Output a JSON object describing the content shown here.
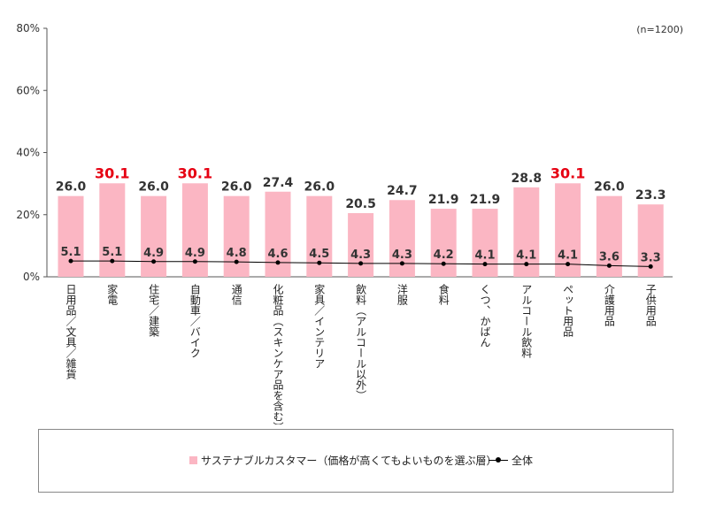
{
  "sample_note": "(n=1200)",
  "chart_data": {
    "type": "bar",
    "categories": [
      "日用品／文具／雑貨",
      "家電",
      "住宅／建築",
      "自動車／バイク",
      "通信",
      "化粧品（スキンケア品を含む）",
      "家具／インテリア",
      "飲料（アルコール以外）",
      "洋服",
      "食料",
      "くつ、かばん",
      "アルコール飲料",
      "ペット用品",
      "介護用品",
      "子供用品"
    ],
    "series": [
      {
        "name": "サステナブルカスタマー（価格が高くてもよいものを選ぶ層）",
        "type": "bar",
        "color": "#fbb6c3",
        "values": [
          26.0,
          30.1,
          26.0,
          30.1,
          26.0,
          27.4,
          26.0,
          20.5,
          24.7,
          21.9,
          21.9,
          28.8,
          30.1,
          26.0,
          23.3
        ],
        "labels": [
          "26.0",
          "30.1",
          "26.0",
          "30.1",
          "26.0",
          "27.4",
          "26.0",
          "20.5",
          "24.7",
          "21.9",
          "21.9",
          "28.8",
          "30.1",
          "26.0",
          "23.3"
        ],
        "highlight_color": "#e60012",
        "highlighted": [
          1,
          3,
          12
        ]
      },
      {
        "name": "全体",
        "type": "line",
        "color": "#000000",
        "values": [
          5.1,
          5.1,
          4.9,
          4.9,
          4.8,
          4.6,
          4.5,
          4.3,
          4.3,
          4.2,
          4.1,
          4.1,
          4.1,
          3.6,
          3.3
        ],
        "labels": [
          "5.1",
          "5.1",
          "4.9",
          "4.9",
          "4.8",
          "4.6",
          "4.5",
          "4.3",
          "4.3",
          "4.2",
          "4.1",
          "4.1",
          "4.1",
          "3.6",
          "3.3"
        ]
      }
    ],
    "ylim": [
      0,
      80
    ],
    "yticks": [
      0,
      20,
      40,
      60,
      80
    ],
    "ytick_labels": [
      "0%",
      "20%",
      "40%",
      "60%",
      "80%"
    ],
    "grid": false,
    "legend_position": "bottom"
  }
}
